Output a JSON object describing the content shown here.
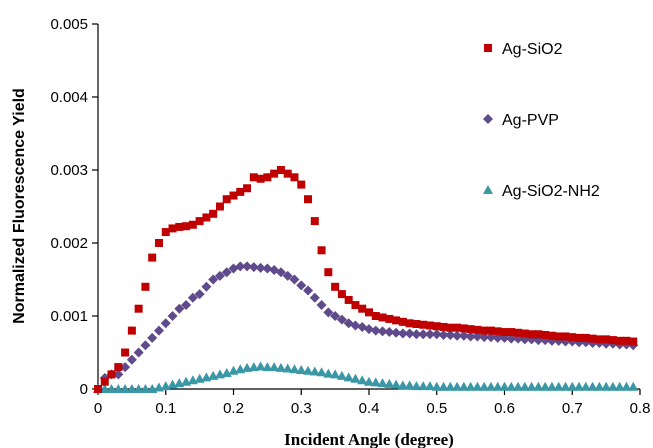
{
  "chart_data": {
    "type": "scatter",
    "xlabel": "Incident Angle (degree)",
    "ylabel": "Normalized Fluorescence Yield",
    "xlim": [
      0,
      0.8
    ],
    "ylim": [
      0,
      0.005
    ],
    "x_ticks": [
      "0",
      "0.1",
      "0.2",
      "0.3",
      "0.4",
      "0.5",
      "0.6",
      "0.7",
      "0.8"
    ],
    "y_ticks": [
      "0",
      "0.001",
      "0.002",
      "0.003",
      "0.004",
      "0.005"
    ],
    "grid": false,
    "legend_position": "right",
    "series": [
      {
        "name": "Ag-SiO2",
        "marker": "square",
        "color": "#c00000",
        "points": [
          [
            0.0,
            0.0
          ],
          [
            0.01,
            0.0001
          ],
          [
            0.02,
            0.0002
          ],
          [
            0.03,
            0.0003
          ],
          [
            0.04,
            0.0005
          ],
          [
            0.05,
            0.0008
          ],
          [
            0.06,
            0.0011
          ],
          [
            0.07,
            0.0014
          ],
          [
            0.08,
            0.0018
          ],
          [
            0.09,
            0.002
          ],
          [
            0.1,
            0.00215
          ],
          [
            0.11,
            0.0022
          ],
          [
            0.12,
            0.00222
          ],
          [
            0.13,
            0.00223
          ],
          [
            0.14,
            0.00225
          ],
          [
            0.15,
            0.0023
          ],
          [
            0.16,
            0.00235
          ],
          [
            0.17,
            0.0024
          ],
          [
            0.18,
            0.0025
          ],
          [
            0.19,
            0.0026
          ],
          [
            0.2,
            0.00265
          ],
          [
            0.21,
            0.0027
          ],
          [
            0.22,
            0.00275
          ],
          [
            0.23,
            0.0029
          ],
          [
            0.24,
            0.00288
          ],
          [
            0.25,
            0.0029
          ],
          [
            0.26,
            0.00295
          ],
          [
            0.27,
            0.003
          ],
          [
            0.28,
            0.00295
          ],
          [
            0.29,
            0.0029
          ],
          [
            0.3,
            0.0028
          ],
          [
            0.31,
            0.0026
          ],
          [
            0.32,
            0.0023
          ],
          [
            0.33,
            0.0019
          ],
          [
            0.34,
            0.0016
          ],
          [
            0.35,
            0.0014
          ],
          [
            0.36,
            0.0013
          ],
          [
            0.37,
            0.00122
          ],
          [
            0.38,
            0.00115
          ],
          [
            0.39,
            0.0011
          ],
          [
            0.4,
            0.00105
          ],
          [
            0.41,
            0.001
          ],
          [
            0.42,
            0.00098
          ],
          [
            0.43,
            0.00096
          ],
          [
            0.44,
            0.00094
          ],
          [
            0.45,
            0.00092
          ],
          [
            0.46,
            0.0009
          ],
          [
            0.47,
            0.00089
          ],
          [
            0.48,
            0.00088
          ],
          [
            0.49,
            0.00087
          ],
          [
            0.5,
            0.00086
          ],
          [
            0.51,
            0.00085
          ],
          [
            0.52,
            0.00084
          ],
          [
            0.53,
            0.00084
          ],
          [
            0.54,
            0.00083
          ],
          [
            0.55,
            0.00082
          ],
          [
            0.56,
            0.00081
          ],
          [
            0.57,
            0.0008
          ],
          [
            0.58,
            0.0008
          ],
          [
            0.59,
            0.00079
          ],
          [
            0.6,
            0.00078
          ],
          [
            0.61,
            0.00078
          ],
          [
            0.62,
            0.00077
          ],
          [
            0.63,
            0.00076
          ],
          [
            0.64,
            0.00075
          ],
          [
            0.65,
            0.00075
          ],
          [
            0.66,
            0.00074
          ],
          [
            0.67,
            0.00073
          ],
          [
            0.68,
            0.00072
          ],
          [
            0.69,
            0.00072
          ],
          [
            0.7,
            0.00071
          ],
          [
            0.71,
            0.0007
          ],
          [
            0.72,
            0.0007
          ],
          [
            0.73,
            0.00069
          ],
          [
            0.74,
            0.00068
          ],
          [
            0.75,
            0.00068
          ],
          [
            0.76,
            0.00067
          ],
          [
            0.77,
            0.00066
          ],
          [
            0.78,
            0.00066
          ],
          [
            0.79,
            0.00065
          ]
        ]
      },
      {
        "name": "Ag-PVP",
        "marker": "diamond",
        "color": "#5f4a8b",
        "points": [
          [
            0.0,
            0.0
          ],
          [
            0.01,
            0.00015
          ],
          [
            0.02,
            0.0002
          ],
          [
            0.03,
            0.0002
          ],
          [
            0.04,
            0.0003
          ],
          [
            0.05,
            0.0004
          ],
          [
            0.06,
            0.0005
          ],
          [
            0.07,
            0.0006
          ],
          [
            0.08,
            0.0007
          ],
          [
            0.09,
            0.0008
          ],
          [
            0.1,
            0.0009
          ],
          [
            0.11,
            0.001
          ],
          [
            0.12,
            0.0011
          ],
          [
            0.13,
            0.00115
          ],
          [
            0.14,
            0.00125
          ],
          [
            0.15,
            0.0013
          ],
          [
            0.16,
            0.0014
          ],
          [
            0.17,
            0.0015
          ],
          [
            0.18,
            0.00155
          ],
          [
            0.19,
            0.0016
          ],
          [
            0.2,
            0.00165
          ],
          [
            0.21,
            0.00168
          ],
          [
            0.22,
            0.00168
          ],
          [
            0.23,
            0.00167
          ],
          [
            0.24,
            0.00166
          ],
          [
            0.25,
            0.00165
          ],
          [
            0.26,
            0.00163
          ],
          [
            0.27,
            0.0016
          ],
          [
            0.28,
            0.00155
          ],
          [
            0.29,
            0.0015
          ],
          [
            0.3,
            0.00142
          ],
          [
            0.31,
            0.00135
          ],
          [
            0.32,
            0.00125
          ],
          [
            0.33,
            0.00115
          ],
          [
            0.34,
            0.00105
          ],
          [
            0.35,
            0.001
          ],
          [
            0.36,
            0.00095
          ],
          [
            0.37,
            0.0009
          ],
          [
            0.38,
            0.00087
          ],
          [
            0.39,
            0.00085
          ],
          [
            0.4,
            0.00082
          ],
          [
            0.41,
            0.0008
          ],
          [
            0.42,
            0.00079
          ],
          [
            0.43,
            0.00078
          ],
          [
            0.44,
            0.00077
          ],
          [
            0.45,
            0.00076
          ],
          [
            0.46,
            0.00076
          ],
          [
            0.47,
            0.00075
          ],
          [
            0.48,
            0.00075
          ],
          [
            0.49,
            0.00075
          ],
          [
            0.5,
            0.00075
          ],
          [
            0.51,
            0.00074
          ],
          [
            0.52,
            0.00074
          ],
          [
            0.53,
            0.00073
          ],
          [
            0.54,
            0.00073
          ],
          [
            0.55,
            0.00072
          ],
          [
            0.56,
            0.00072
          ],
          [
            0.57,
            0.00071
          ],
          [
            0.58,
            0.00071
          ],
          [
            0.59,
            0.0007
          ],
          [
            0.6,
            0.0007
          ],
          [
            0.61,
            0.00069
          ],
          [
            0.62,
            0.00069
          ],
          [
            0.63,
            0.00068
          ],
          [
            0.64,
            0.00068
          ],
          [
            0.65,
            0.00067
          ],
          [
            0.66,
            0.00067
          ],
          [
            0.67,
            0.00066
          ],
          [
            0.68,
            0.00066
          ],
          [
            0.69,
            0.00065
          ],
          [
            0.7,
            0.00065
          ],
          [
            0.71,
            0.00064
          ],
          [
            0.72,
            0.00064
          ],
          [
            0.73,
            0.00063
          ],
          [
            0.74,
            0.00063
          ],
          [
            0.75,
            0.00062
          ],
          [
            0.76,
            0.00062
          ],
          [
            0.77,
            0.00061
          ],
          [
            0.78,
            0.00061
          ],
          [
            0.79,
            0.0006
          ]
        ]
      },
      {
        "name": "Ag-SiO2-NH2",
        "marker": "triangle",
        "color": "#3a97a6",
        "points": [
          [
            0.0,
            0.0
          ],
          [
            0.01,
            0.0
          ],
          [
            0.02,
            0.0
          ],
          [
            0.03,
            0.0
          ],
          [
            0.04,
            0.0
          ],
          [
            0.05,
            0.0
          ],
          [
            0.06,
            0.0
          ],
          [
            0.07,
            0.0
          ],
          [
            0.08,
            0.0
          ],
          [
            0.09,
            2e-05
          ],
          [
            0.1,
            4e-05
          ],
          [
            0.11,
            6e-05
          ],
          [
            0.12,
            8e-05
          ],
          [
            0.13,
            0.0001
          ],
          [
            0.14,
            0.00012
          ],
          [
            0.15,
            0.00014
          ],
          [
            0.16,
            0.00016
          ],
          [
            0.17,
            0.00018
          ],
          [
            0.18,
            0.0002
          ],
          [
            0.19,
            0.00022
          ],
          [
            0.2,
            0.00025
          ],
          [
            0.21,
            0.00027
          ],
          [
            0.22,
            0.00029
          ],
          [
            0.23,
            0.0003
          ],
          [
            0.24,
            0.00031
          ],
          [
            0.25,
            0.0003
          ],
          [
            0.26,
            0.0003
          ],
          [
            0.27,
            0.00029
          ],
          [
            0.28,
            0.00028
          ],
          [
            0.29,
            0.00027
          ],
          [
            0.3,
            0.00026
          ],
          [
            0.31,
            0.00025
          ],
          [
            0.32,
            0.00024
          ],
          [
            0.33,
            0.00023
          ],
          [
            0.34,
            0.00021
          ],
          [
            0.35,
            0.0002
          ],
          [
            0.36,
            0.00018
          ],
          [
            0.37,
            0.00016
          ],
          [
            0.38,
            0.00014
          ],
          [
            0.39,
            0.00012
          ],
          [
            0.4,
            0.0001
          ],
          [
            0.41,
            9e-05
          ],
          [
            0.42,
            8e-05
          ],
          [
            0.43,
            7e-05
          ],
          [
            0.44,
            6e-05
          ],
          [
            0.45,
            5e-05
          ],
          [
            0.46,
            5e-05
          ],
          [
            0.47,
            4e-05
          ],
          [
            0.48,
            4e-05
          ],
          [
            0.49,
            4e-05
          ],
          [
            0.5,
            3e-05
          ],
          [
            0.51,
            3e-05
          ],
          [
            0.52,
            3e-05
          ],
          [
            0.53,
            3e-05
          ],
          [
            0.54,
            3e-05
          ],
          [
            0.55,
            3e-05
          ],
          [
            0.56,
            3e-05
          ],
          [
            0.57,
            3e-05
          ],
          [
            0.58,
            3e-05
          ],
          [
            0.59,
            3e-05
          ],
          [
            0.6,
            3e-05
          ],
          [
            0.61,
            3e-05
          ],
          [
            0.62,
            3e-05
          ],
          [
            0.63,
            3e-05
          ],
          [
            0.64,
            3e-05
          ],
          [
            0.65,
            3e-05
          ],
          [
            0.66,
            3e-05
          ],
          [
            0.67,
            3e-05
          ],
          [
            0.68,
            3e-05
          ],
          [
            0.69,
            3e-05
          ],
          [
            0.7,
            3e-05
          ],
          [
            0.71,
            3e-05
          ],
          [
            0.72,
            3e-05
          ],
          [
            0.73,
            3e-05
          ],
          [
            0.74,
            3e-05
          ],
          [
            0.75,
            3e-05
          ],
          [
            0.76,
            3e-05
          ],
          [
            0.77,
            3e-05
          ],
          [
            0.78,
            3e-05
          ],
          [
            0.79,
            3e-05
          ]
        ]
      }
    ]
  }
}
